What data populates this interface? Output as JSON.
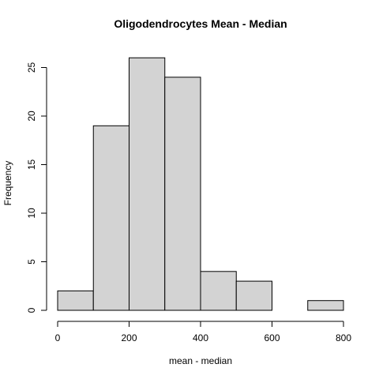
{
  "chart_data": {
    "type": "bar",
    "title": "Oligodendrocytes Mean - Median",
    "xlabel": "mean - median",
    "ylabel": "Frequency",
    "bins": [
      {
        "from": 0,
        "to": 100,
        "count": 2
      },
      {
        "from": 100,
        "to": 200,
        "count": 19
      },
      {
        "from": 200,
        "to": 300,
        "count": 26
      },
      {
        "from": 300,
        "to": 400,
        "count": 24
      },
      {
        "from": 400,
        "to": 500,
        "count": 4
      },
      {
        "from": 500,
        "to": 600,
        "count": 3
      },
      {
        "from": 600,
        "to": 700,
        "count": 0
      },
      {
        "from": 700,
        "to": 800,
        "count": 1
      }
    ],
    "xlim": [
      0,
      800
    ],
    "ylim": [
      0,
      26
    ],
    "xticks": [
      "0",
      "200",
      "400",
      "600",
      "800"
    ],
    "yticks": [
      "0",
      "5",
      "10",
      "15",
      "20",
      "25"
    ],
    "bar_color": "#d3d3d3",
    "grid": false
  }
}
